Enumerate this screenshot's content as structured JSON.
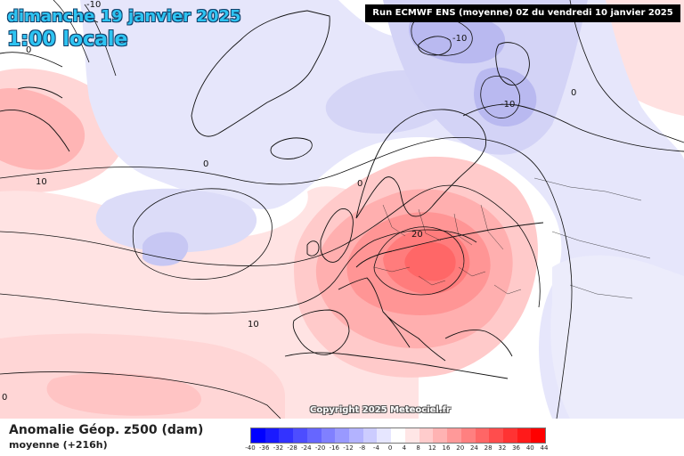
{
  "header": {
    "date_line": "dimanche 19 janvier 2025",
    "time_line": "1:00 locale",
    "run_info": "Run ECMWF ENS (moyenne) 0Z du vendredi 10 janvier 2025"
  },
  "map": {
    "contour_labels": [
      {
        "name": "contour-label-minus10-labrador",
        "text": "-10"
      },
      {
        "name": "contour-label-minus10-barents",
        "text": "-10"
      },
      {
        "name": "contour-label-minus10-scandinavia",
        "text": "-10"
      },
      {
        "name": "contour-label-0-greenland",
        "text": "0"
      },
      {
        "name": "contour-label-0-atlantic",
        "text": "0"
      },
      {
        "name": "contour-label-0-norway",
        "text": "0"
      },
      {
        "name": "contour-label-0-siberia",
        "text": "0"
      },
      {
        "name": "contour-label-10-canada",
        "text": "10"
      },
      {
        "name": "contour-label-10-atlantic",
        "text": "10"
      },
      {
        "name": "contour-label-20-europe",
        "text": "20"
      },
      {
        "name": "contour-label-0-bottom-left",
        "text": "0"
      }
    ],
    "copyright": "Copyright 2025 Meteociel.fr"
  },
  "footer": {
    "title": "Anomalie Géop. z500 (dam)",
    "subtitle": "moyenne   (+216h)"
  },
  "legend": {
    "ticks": [
      "-40",
      "-36",
      "-32",
      "-28",
      "-24",
      "-20",
      "-16",
      "-12",
      "-8",
      "-4",
      "0",
      "4",
      "8",
      "12",
      "16",
      "20",
      "24",
      "28",
      "32",
      "36",
      "40",
      "44"
    ],
    "colors": [
      "#0000ff",
      "#1a1aff",
      "#3333ff",
      "#4d4dff",
      "#6666ff",
      "#8080ff",
      "#9999ff",
      "#b3b3ff",
      "#ccccff",
      "#e6e6ff",
      "#ffffff",
      "#ffe6e6",
      "#ffcccc",
      "#ffb3b3",
      "#ff9999",
      "#ff8080",
      "#ff6666",
      "#ff4d4d",
      "#ff3333",
      "#ff1a1a",
      "#ff0000"
    ]
  }
}
